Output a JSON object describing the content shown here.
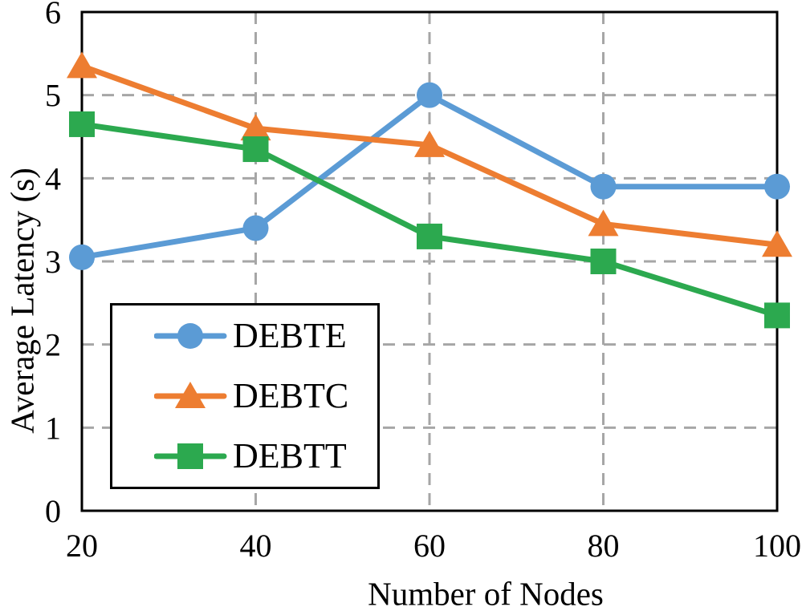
{
  "chart_data": {
    "type": "line",
    "x": [
      20,
      40,
      60,
      80,
      100
    ],
    "x_ticks": [
      20,
      40,
      60,
      80,
      100
    ],
    "y_ticks": [
      0,
      1,
      2,
      3,
      4,
      5,
      6
    ],
    "xlim": [
      20,
      100
    ],
    "ylim": [
      0,
      6
    ],
    "xlabel": "Number of Nodes",
    "ylabel": "Average Latency (s)",
    "grid": true,
    "legend_position": "inside-lower-left",
    "series": [
      {
        "name": "DEBTE",
        "marker": "circle",
        "color": "#5B9BD5",
        "values": [
          3.05,
          3.4,
          5.0,
          3.9,
          3.9
        ]
      },
      {
        "name": "DEBTC",
        "marker": "triangle",
        "color": "#ED7D31",
        "values": [
          5.35,
          4.6,
          4.4,
          3.45,
          3.2
        ]
      },
      {
        "name": "DEBTT",
        "marker": "square",
        "color": "#2CA94F",
        "values": [
          4.65,
          4.35,
          3.3,
          3.0,
          2.35
        ]
      }
    ],
    "colors": {
      "grid": "#A6A6A6",
      "axis": "#000000",
      "text": "#000000",
      "background": "#FFFFFF"
    }
  }
}
